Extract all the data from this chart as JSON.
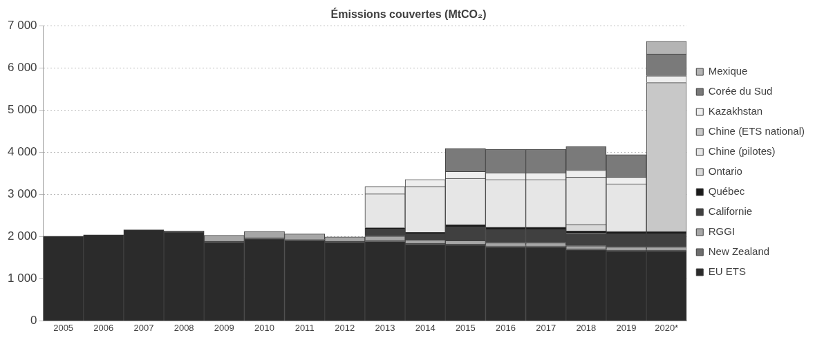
{
  "chart_data": {
    "type": "bar",
    "stacked": true,
    "title": "Émissions couvertes (MtCO₂)",
    "categories": [
      "2005",
      "2006",
      "2007",
      "2008",
      "2009",
      "2010",
      "2011",
      "2012",
      "2013",
      "2014",
      "2015",
      "2016",
      "2017",
      "2018",
      "2019",
      "2020*"
    ],
    "series": [
      {
        "name": "EU ETS",
        "color": "#2b2b2b",
        "values": [
          2010,
          2040,
          2160,
          2100,
          1860,
          1940,
          1900,
          1860,
          1880,
          1810,
          1790,
          1750,
          1750,
          1680,
          1650,
          1650
        ]
      },
      {
        "name": "New Zealand",
        "color": "#6e6e6e",
        "values": [
          null,
          null,
          null,
          30,
          30,
          30,
          30,
          30,
          30,
          30,
          30,
          30,
          30,
          30,
          30,
          30
        ]
      },
      {
        "name": "RGGI",
        "color": "#a6a6a6",
        "values": [
          null,
          null,
          null,
          null,
          140,
          150,
          130,
          100,
          100,
          80,
          80,
          70,
          70,
          70,
          70,
          70
        ]
      },
      {
        "name": "Californie",
        "color": "#404040",
        "values": [
          null,
          null,
          null,
          null,
          null,
          null,
          null,
          null,
          170,
          150,
          330,
          320,
          320,
          300,
          320,
          320
        ]
      },
      {
        "name": "Québec",
        "color": "#1a1a1a",
        "values": [
          null,
          null,
          null,
          null,
          null,
          null,
          null,
          null,
          30,
          30,
          50,
          50,
          50,
          50,
          50,
          50
        ]
      },
      {
        "name": "Ontario",
        "color": "#d9d9d9",
        "values": [
          null,
          null,
          null,
          null,
          null,
          null,
          null,
          null,
          null,
          null,
          null,
          null,
          null,
          150,
          null,
          null
        ]
      },
      {
        "name": "Chine (pilotes)",
        "color": "#e6e6e6",
        "values": [
          null,
          null,
          null,
          null,
          null,
          null,
          null,
          null,
          800,
          1080,
          1100,
          1130,
          1130,
          1130,
          1130,
          null
        ]
      },
      {
        "name": "Chine (ETS national)",
        "color": "#c8c8c8",
        "values": [
          null,
          null,
          null,
          null,
          null,
          null,
          null,
          null,
          null,
          null,
          null,
          null,
          null,
          null,
          null,
          3530
        ]
      },
      {
        "name": "Kazakhstan",
        "color": "#eeeeee",
        "values": [
          null,
          null,
          null,
          null,
          null,
          null,
          null,
          null,
          170,
          170,
          160,
          160,
          160,
          160,
          160,
          160
        ]
      },
      {
        "name": "Corée du Sud",
        "color": "#7a7a7a",
        "values": [
          null,
          null,
          null,
          null,
          null,
          null,
          null,
          null,
          null,
          null,
          550,
          560,
          560,
          560,
          530,
          520
        ]
      },
      {
        "name": "Mexique",
        "color": "#b4b4b4",
        "values": [
          null,
          null,
          null,
          null,
          null,
          null,
          null,
          null,
          null,
          null,
          null,
          null,
          null,
          null,
          null,
          300
        ]
      }
    ],
    "ylim": [
      0,
      7000
    ],
    "yticks": [
      {
        "value": 0,
        "label": "0"
      },
      {
        "value": 1000,
        "label": "1 000"
      },
      {
        "value": 2000,
        "label": "2 000"
      },
      {
        "value": 3000,
        "label": "3 000"
      },
      {
        "value": 4000,
        "label": "4 000"
      },
      {
        "value": 5000,
        "label": "5 000"
      },
      {
        "value": 6000,
        "label": "6 000"
      },
      {
        "value": 7000,
        "label": "7 000"
      }
    ],
    "grid": "y",
    "legend": "right"
  }
}
